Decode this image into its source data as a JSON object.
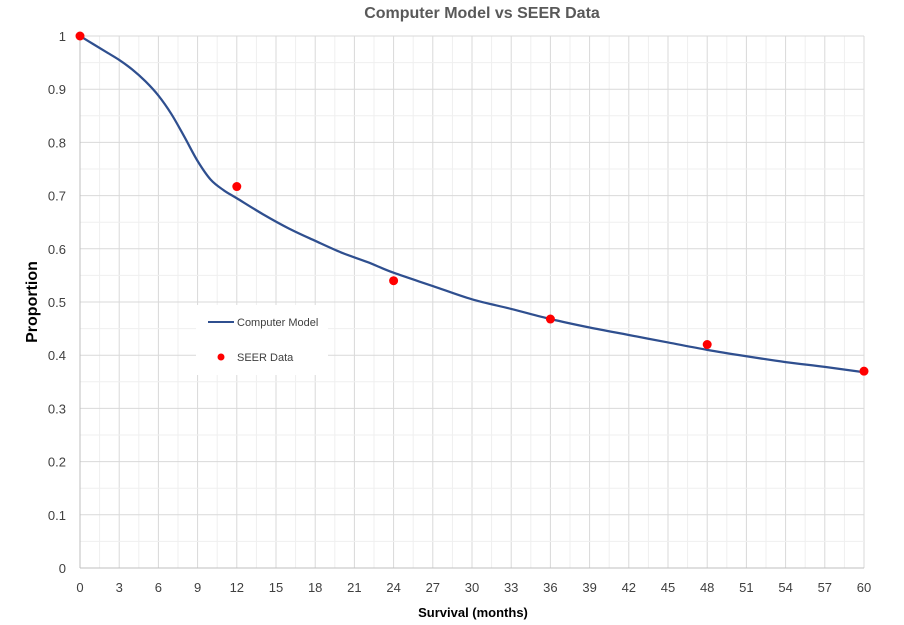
{
  "chart_data": {
    "type": "line",
    "title": "Computer Model vs SEER Data",
    "xlabel": "Survival (months)",
    "ylabel": "Proportion",
    "xlim": [
      0,
      60
    ],
    "ylim": [
      0,
      1
    ],
    "x_ticks": [
      "0",
      "3",
      "6",
      "9",
      "12",
      "15",
      "18",
      "21",
      "24",
      "27",
      "30",
      "33",
      "36",
      "39",
      "42",
      "45",
      "48",
      "51",
      "54",
      "57",
      "60"
    ],
    "y_ticks": [
      "0",
      "0.1",
      "0.2",
      "0.3",
      "0.4",
      "0.5",
      "0.6",
      "0.7",
      "0.8",
      "0.9",
      "1"
    ],
    "grid": true,
    "legend_position": "middle-left",
    "series": [
      {
        "name": "Computer Model",
        "kind": "line",
        "color": "#2F4F8F",
        "x": [
          0,
          1,
          2,
          3,
          4,
          5,
          6,
          7,
          8,
          9,
          10,
          11,
          12,
          14,
          16,
          18,
          20,
          22,
          24,
          27,
          30,
          33,
          36,
          39,
          42,
          45,
          48,
          51,
          54,
          57,
          60
        ],
        "y": [
          1.0,
          0.985,
          0.97,
          0.955,
          0.937,
          0.915,
          0.888,
          0.853,
          0.81,
          0.765,
          0.73,
          0.71,
          0.695,
          0.665,
          0.638,
          0.615,
          0.593,
          0.575,
          0.555,
          0.53,
          0.505,
          0.487,
          0.468,
          0.452,
          0.438,
          0.424,
          0.41,
          0.398,
          0.387,
          0.378,
          0.368
        ]
      },
      {
        "name": "SEER Data",
        "kind": "scatter",
        "color": "#FF0000",
        "x": [
          0,
          12,
          24,
          36,
          48,
          60
        ],
        "y": [
          1.0,
          0.717,
          0.54,
          0.468,
          0.42,
          0.37
        ]
      }
    ]
  }
}
